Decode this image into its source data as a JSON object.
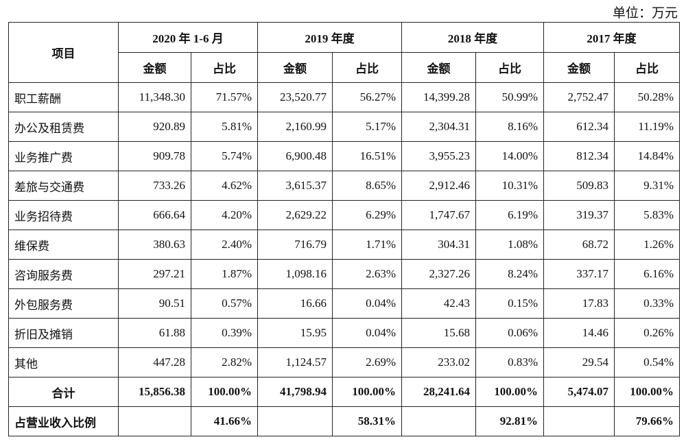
{
  "header": {
    "unit": "单位：万元"
  },
  "table": {
    "item_header": "项目",
    "periods": [
      "2020 年 1-6 月",
      "2019 年度",
      "2018 年度",
      "2017 年度"
    ],
    "amount_header": "金额",
    "ratio_header": "占比",
    "rows": [
      {
        "label": "职工薪酬",
        "cells": [
          "11,348.30",
          "71.57%",
          "23,520.77",
          "56.27%",
          "14,399.28",
          "50.99%",
          "2,752.47",
          "50.28%"
        ]
      },
      {
        "label": "办公及租赁费",
        "cells": [
          "920.89",
          "5.81%",
          "2,160.99",
          "5.17%",
          "2,304.31",
          "8.16%",
          "612.34",
          "11.19%"
        ]
      },
      {
        "label": "业务推广费",
        "cells": [
          "909.78",
          "5.74%",
          "6,900.48",
          "16.51%",
          "3,955.23",
          "14.00%",
          "812.34",
          "14.84%"
        ]
      },
      {
        "label": "差旅与交通费",
        "cells": [
          "733.26",
          "4.62%",
          "3,615.37",
          "8.65%",
          "2,912.46",
          "10.31%",
          "509.83",
          "9.31%"
        ]
      },
      {
        "label": "业务招待费",
        "cells": [
          "666.64",
          "4.20%",
          "2,629.22",
          "6.29%",
          "1,747.67",
          "6.19%",
          "319.37",
          "5.83%"
        ]
      },
      {
        "label": "维保费",
        "cells": [
          "380.63",
          "2.40%",
          "716.79",
          "1.71%",
          "304.31",
          "1.08%",
          "68.72",
          "1.26%"
        ]
      },
      {
        "label": "咨询服务费",
        "cells": [
          "297.21",
          "1.87%",
          "1,098.16",
          "2.63%",
          "2,327.26",
          "8.24%",
          "337.17",
          "6.16%"
        ]
      },
      {
        "label": "外包服务费",
        "cells": [
          "90.51",
          "0.57%",
          "16.66",
          "0.04%",
          "42.43",
          "0.15%",
          "17.83",
          "0.33%"
        ]
      },
      {
        "label": "折旧及摊销",
        "cells": [
          "61.88",
          "0.39%",
          "15.95",
          "0.04%",
          "15.68",
          "0.06%",
          "14.46",
          "0.26%"
        ]
      },
      {
        "label": "其他",
        "cells": [
          "447.28",
          "2.82%",
          "1,124.57",
          "2.69%",
          "233.02",
          "0.83%",
          "29.54",
          "0.54%"
        ]
      }
    ],
    "total": {
      "label": "合计",
      "cells": [
        "15,856.38",
        "100.00%",
        "41,798.94",
        "100.00%",
        "28,241.64",
        "100.00%",
        "5,474.07",
        "100.00%"
      ]
    },
    "revenue_ratio": {
      "label": "占营业收入比例",
      "ratios": [
        "41.66%",
        "58.31%",
        "92.81%",
        "79.66%"
      ]
    }
  }
}
